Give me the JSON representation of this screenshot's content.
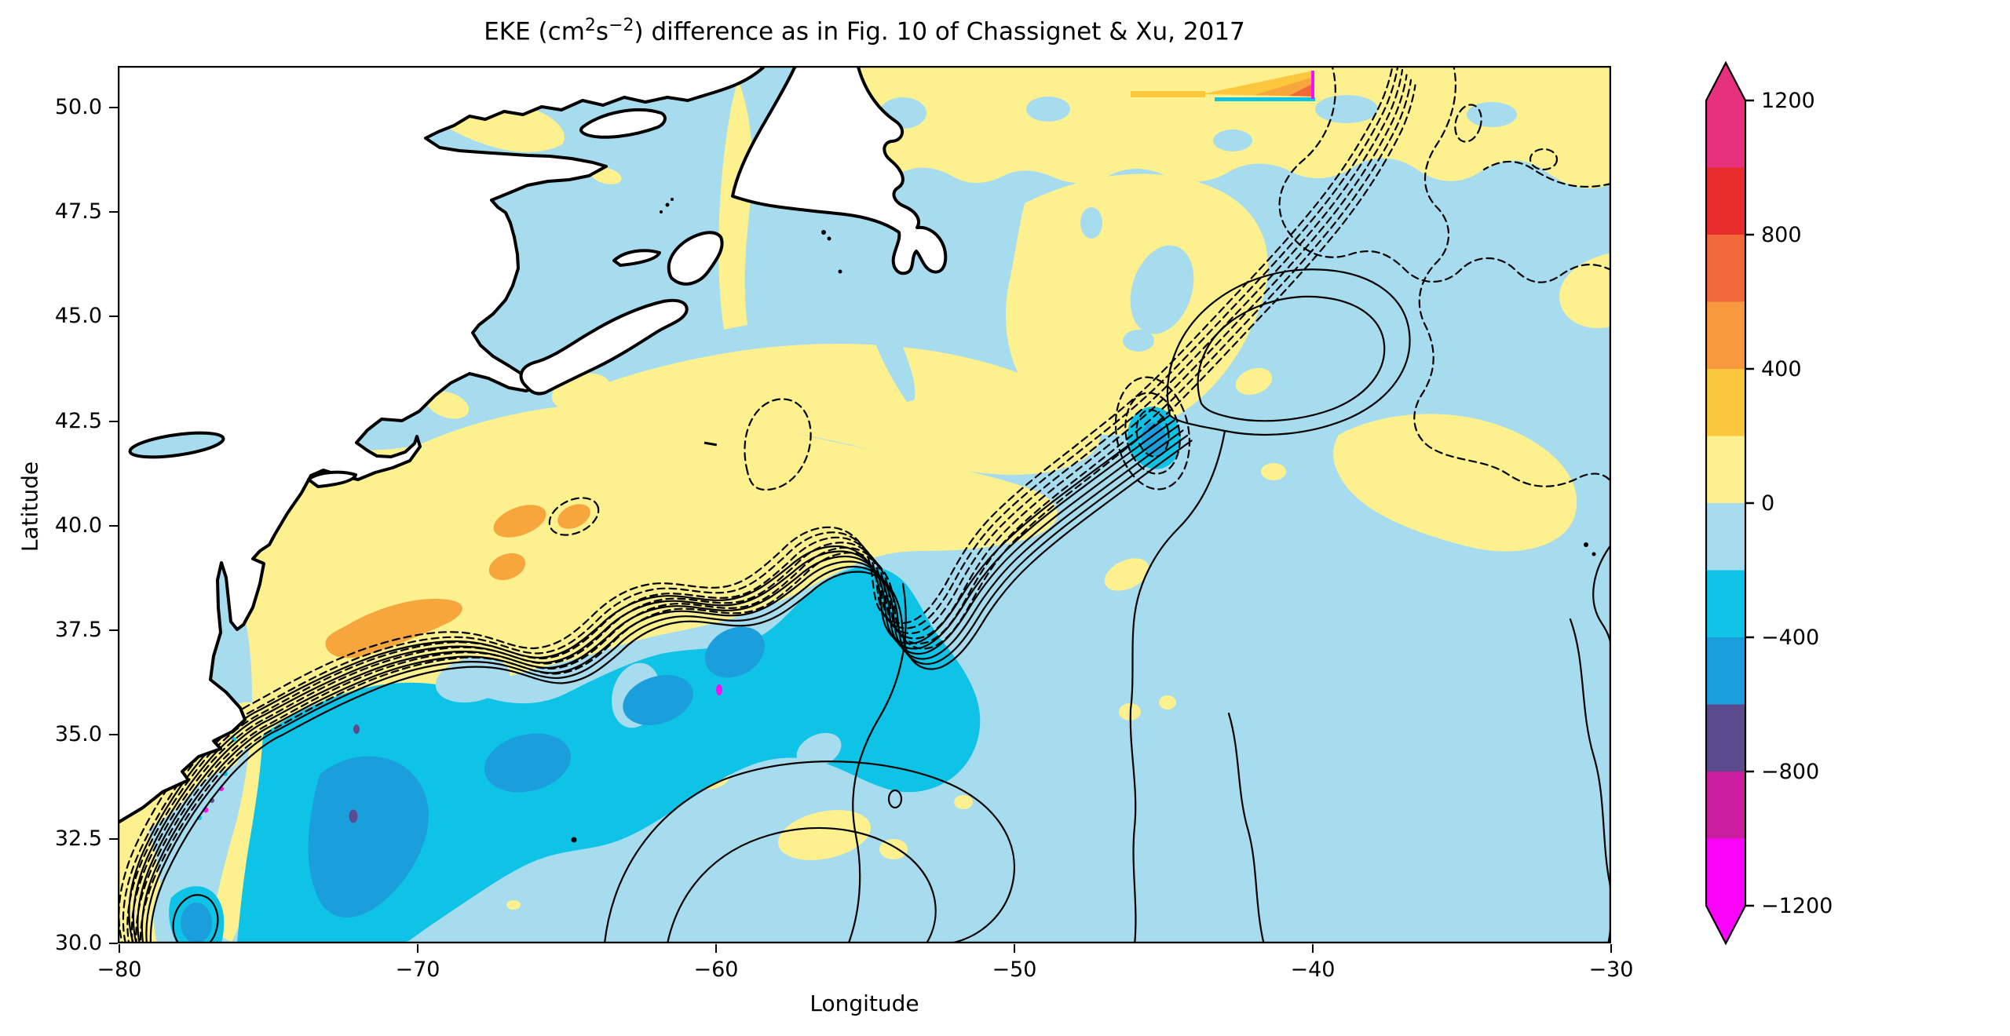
{
  "title": {
    "pre": "EKE (cm",
    "sup1": "2",
    "mid": "s",
    "sup2": "−2",
    "post": ") difference as in Fig. 10 of Chassignet & Xu, 2017"
  },
  "axes": {
    "xlabel": "Longitude",
    "ylabel": "Latitude",
    "xticks": [
      {
        "lon": -80,
        "label": "−80"
      },
      {
        "lon": -70,
        "label": "−70"
      },
      {
        "lon": -60,
        "label": "−60"
      },
      {
        "lon": -50,
        "label": "−50"
      },
      {
        "lon": -40,
        "label": "−40"
      },
      {
        "lon": -30,
        "label": "−30"
      }
    ],
    "yticks": [
      {
        "lat": 30,
        "label": "30.0"
      },
      {
        "lat": 32.5,
        "label": "32.5"
      },
      {
        "lat": 35,
        "label": "35.0"
      },
      {
        "lat": 37.5,
        "label": "37.5"
      },
      {
        "lat": 40,
        "label": "40.0"
      },
      {
        "lat": 42.5,
        "label": "42.5"
      },
      {
        "lat": 45,
        "label": "45.0"
      },
      {
        "lat": 47.5,
        "label": "47.5"
      },
      {
        "lat": 50,
        "label": "50.0"
      }
    ]
  },
  "colorbar": {
    "ticks": [
      {
        "v": 1200,
        "label": "1200"
      },
      {
        "v": 800,
        "label": "800"
      },
      {
        "v": 400,
        "label": "400"
      },
      {
        "v": 0,
        "label": "0"
      },
      {
        "v": -400,
        "label": "−400"
      },
      {
        "v": -800,
        "label": "−800"
      },
      {
        "v": -1200,
        "label": "−1200"
      }
    ],
    "segments": [
      {
        "from": -1200,
        "to": -1000,
        "color": "#fb02fb"
      },
      {
        "from": -1000,
        "to": -800,
        "color": "#cb1d9f"
      },
      {
        "from": -800,
        "to": -600,
        "color": "#5b4a8e"
      },
      {
        "from": -600,
        "to": -400,
        "color": "#1b9fdc"
      },
      {
        "from": -400,
        "to": -200,
        "color": "#0fc3e7"
      },
      {
        "from": -200,
        "to": 0,
        "color": "#a7dcee"
      },
      {
        "from": 0,
        "to": 200,
        "color": "#fdf18f"
      },
      {
        "from": 200,
        "to": 400,
        "color": "#fcc63d"
      },
      {
        "from": 400,
        "to": 600,
        "color": "#f8993f"
      },
      {
        "from": 600,
        "to": 800,
        "color": "#f1683a"
      },
      {
        "from": 800,
        "to": 1000,
        "color": "#e92c2c"
      },
      {
        "from": 1000,
        "to": 1200,
        "color": "#e7317f"
      }
    ],
    "under": "#fb02fb",
    "over": "#e7317f"
  },
  "colors": {
    "ocean": "#a7dcee",
    "positive_low": "#fdf18f",
    "positive_mid": "#f6a63c",
    "negative_low": "#0fc3e7",
    "negative_mid": "#1b9fdc",
    "negative_high": "#5b4a8e",
    "negative_extreme": "#f911ef",
    "land": "#ffffff",
    "contour": "#000000"
  },
  "chart_data": {
    "type": "filled_contour_map",
    "title": "EKE (cm2 s-2) difference as in Fig. 10 of Chassignet & Xu, 2017",
    "xlabel": "Longitude",
    "ylabel": "Latitude",
    "xlim": [
      -80,
      -30
    ],
    "ylim": [
      30,
      51
    ],
    "xticks": [
      -80,
      -70,
      -60,
      -50,
      -40,
      -30
    ],
    "yticks": [
      30,
      32.5,
      35,
      37.5,
      40,
      42.5,
      45,
      47.5,
      50
    ],
    "grid": false,
    "colorbar": {
      "levels": [
        -1200,
        -1000,
        -800,
        -600,
        -400,
        -200,
        0,
        200,
        400,
        600,
        800,
        1000,
        1200
      ],
      "labeled_ticks": [
        -1200,
        -800,
        -400,
        0,
        400,
        800,
        1200
      ],
      "units": "cm2 s-2",
      "extend": "both",
      "position": "right"
    },
    "overlays": [
      {
        "name": "gulf-stream-mean-contours-experiment-A",
        "style": "solid black lines, tight bundle from Cape Hatteras (-75.5,35.2) northeastward with meanders, plus broad loops in SE quadrant and near (-45,42)"
      },
      {
        "name": "gulf-stream-mean-contours-experiment-B",
        "style": "dashed black lines, bundle north of solid set, wandering loops across upper-right quadrant and rings around eddy near (-45.5,44)"
      }
    ],
    "features": [
      {
        "region": "south of Gulf Stream, 34-38.5N / -74 to -57",
        "value_range": [
          -600,
          -200
        ]
      },
      {
        "region": "isolated minima inside that band (e.g. -72,35.2 and -59.8,37.5)",
        "value_range": [
          -800,
          -600
        ]
      },
      {
        "region": "shelf + slope sea north of Gulf Stream path, -76 to -50 / 36-44N",
        "value_range": [
          0,
          400
        ]
      },
      {
        "region": "orange maxima near -71.5,39.5 / -67,40.5 / -65,40.5",
        "value_range": [
          200,
          600
        ]
      },
      {
        "region": "cyclonic eddy decrease near -45.5,44.2",
        "value_range": [
          -400,
          -200
        ]
      },
      {
        "region": "Florida Strait corner eddy near -78,30.5",
        "value_range": [
          -600,
          -200
        ]
      },
      {
        "region": "broad NE Atlantic background, upper-right quadrant",
        "value_range": [
          0,
          200
        ]
      },
      {
        "region": "narrow wedge at 50.8N from -54 to -40 (right-pointing)",
        "value_range": [
          200,
          1000
        ]
      },
      {
        "region": "open ocean background elsewhere",
        "value_range": [
          -200,
          0
        ]
      },
      {
        "region": "tiny specks along the near-shore jet (-77.3,33) and at -68,37.5",
        "value_range": [
          -1200,
          -800
        ]
      }
    ]
  }
}
